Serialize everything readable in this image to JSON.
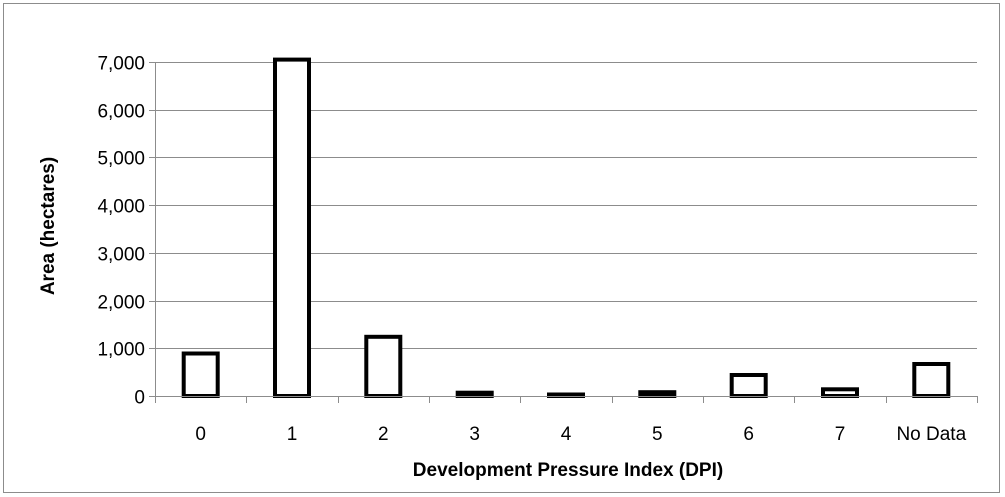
{
  "chart_data": {
    "type": "bar",
    "title": "",
    "xlabel": "Development Pressure Index (DPI)",
    "ylabel": "Area (hectares)",
    "categories": [
      "0",
      "1",
      "2",
      "3",
      "4",
      "5",
      "6",
      "7",
      "No Data"
    ],
    "values": [
      890,
      7050,
      1240,
      70,
      20,
      80,
      440,
      140,
      670
    ],
    "ylim": [
      0,
      7000
    ],
    "yticks": [
      0,
      1000,
      2000,
      3000,
      4000,
      5000,
      6000,
      7000
    ],
    "ytick_labels": [
      "0",
      "1,000",
      "2,000",
      "3,000",
      "4,000",
      "5,000",
      "6,000",
      "7,000"
    ],
    "grid": true,
    "legend": false,
    "bar_fill": "#ffffff",
    "bar_stroke": "#000000",
    "grid_color": "#8c8c8c"
  }
}
